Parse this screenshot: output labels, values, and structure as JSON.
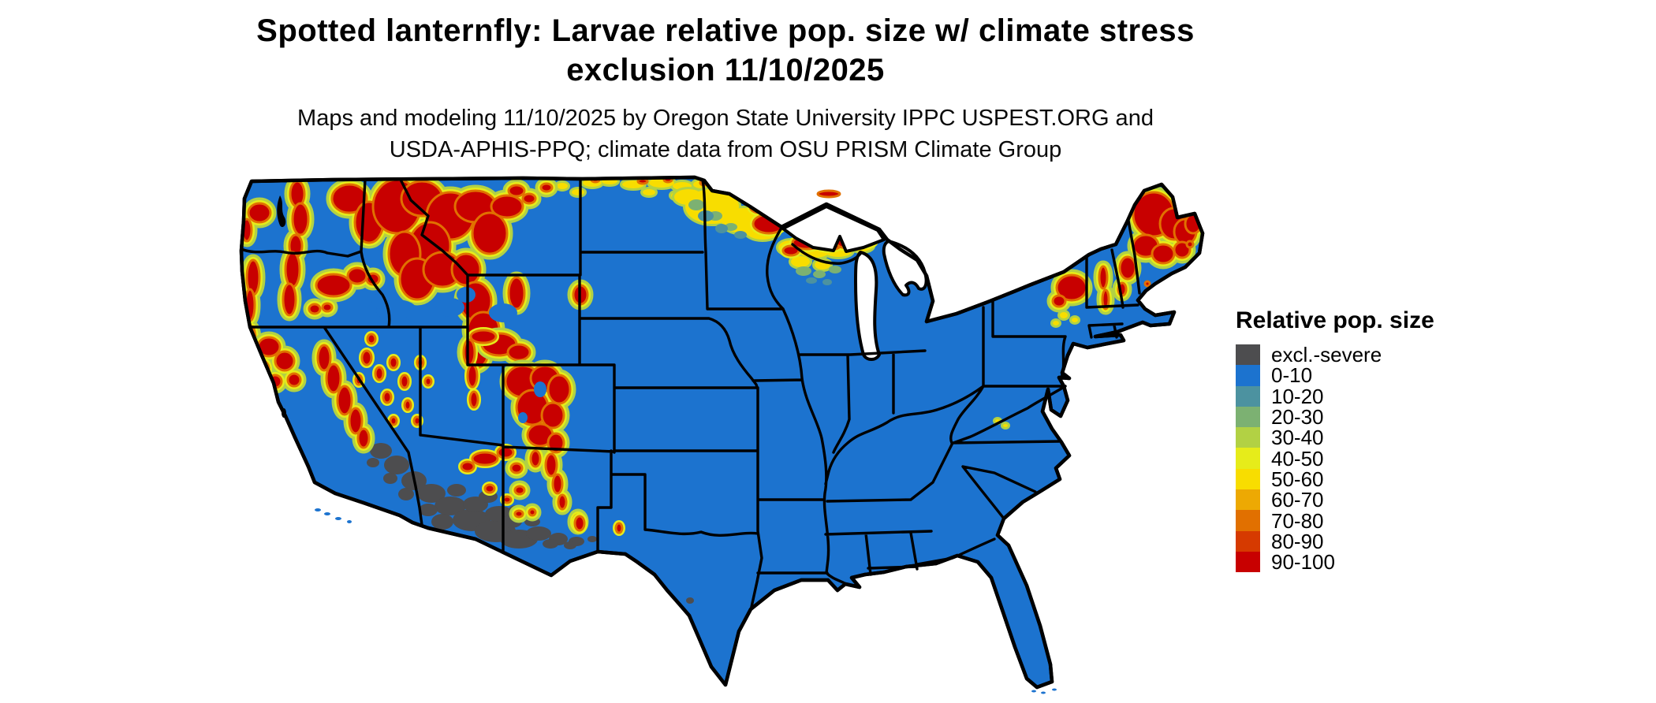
{
  "header": {
    "title_line1": "Spotted lanternfly: Larvae relative pop. size w/ climate stress",
    "title_line2": "exclusion 11/10/2025",
    "subtitle_line1": "Maps and modeling 11/10/2025 by Oregon State University IPPC USPEST.ORG and",
    "subtitle_line2": "USDA-APHIS-PPQ; climate data from OSU PRISM Climate Group"
  },
  "legend": {
    "title": "Relative pop. size",
    "entries": [
      {
        "key": "excl",
        "label": "excl.-severe",
        "color": "#4d4d4f"
      },
      {
        "key": "v0_10",
        "label": "0-10",
        "color": "#1c73cf"
      },
      {
        "key": "v10_20",
        "label": "10-20",
        "color": "#4c92a0"
      },
      {
        "key": "v20_30",
        "label": "20-30",
        "color": "#7cb172"
      },
      {
        "key": "v30_40",
        "label": "30-40",
        "color": "#b2d144"
      },
      {
        "key": "v40_50",
        "label": "40-50",
        "color": "#e6ec1a"
      },
      {
        "key": "v50_60",
        "label": "50-60",
        "color": "#f8dd00"
      },
      {
        "key": "v60_70",
        "label": "60-70",
        "color": "#eda903"
      },
      {
        "key": "v70_80",
        "label": "70-80",
        "color": "#e17000"
      },
      {
        "key": "v80_90",
        "label": "80-90",
        "color": "#d63a00"
      },
      {
        "key": "v90_100",
        "label": "90-100",
        "color": "#c80000"
      }
    ]
  },
  "map": {
    "description": "Raster map of the contiguous United States shaded by larvae relative population size; most of the country is in the 0-10 class, with 90-100 hotspots across the mountain West, the northern Great Lakes shore and northern New England, and an excl.-severe zone in Arizona / southeastern California.",
    "base_category": "0-10",
    "excluded_category": "excl.-severe",
    "border_color": "#000000",
    "background_color": "#ffffff"
  }
}
